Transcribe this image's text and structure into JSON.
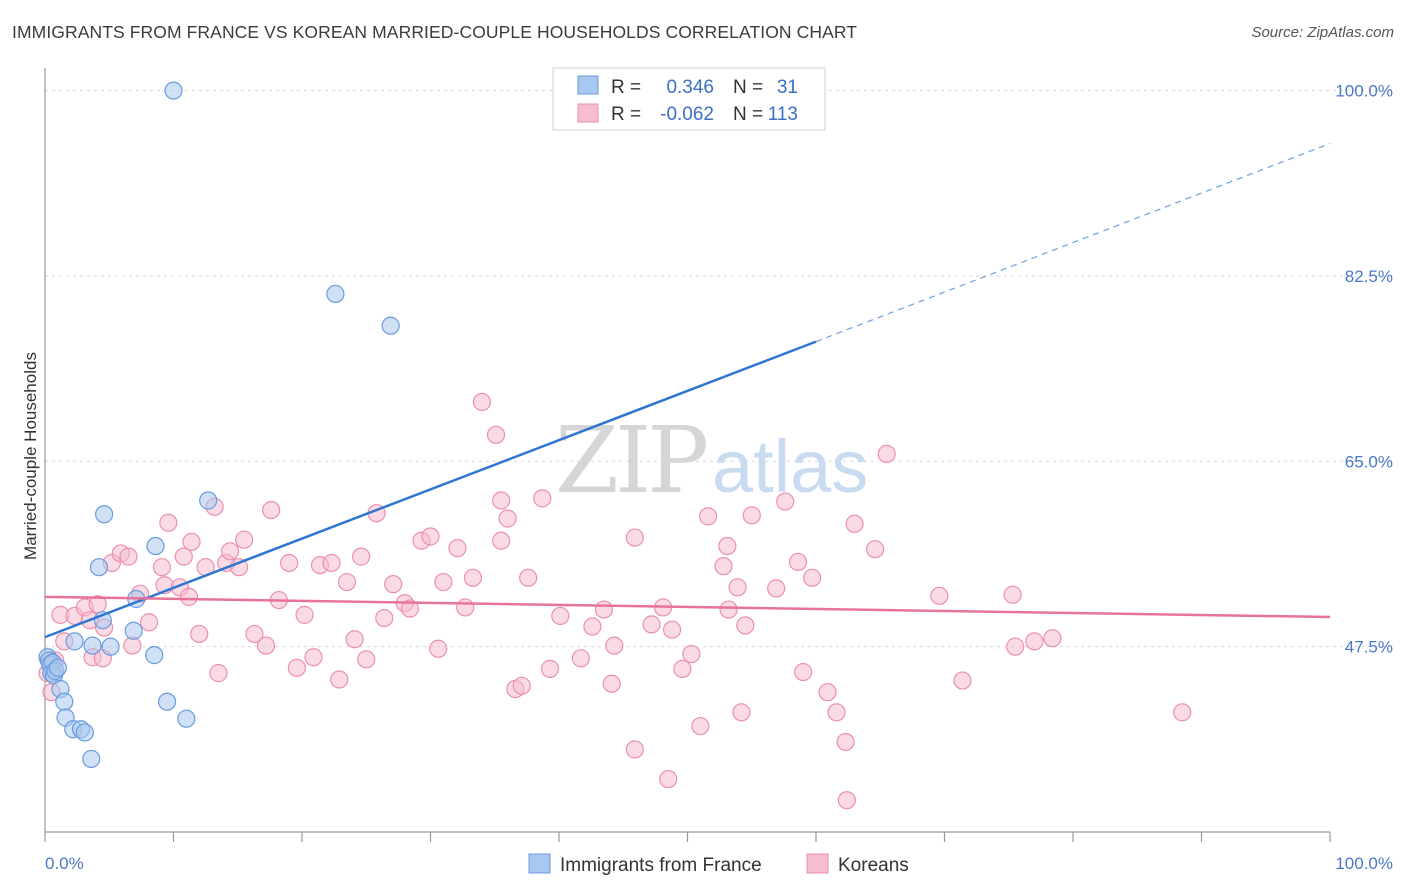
{
  "header": {
    "title": "IMMIGRANTS FROM FRANCE VS KOREAN MARRIED-COUPLE HOUSEHOLDS CORRELATION CHART",
    "source": "Source: ZipAtlas.com"
  },
  "watermark": {
    "zip": "ZIP",
    "atlas": "atlas"
  },
  "legend": {
    "rows": [
      {
        "r_label": "R =",
        "r_value": "0.346",
        "n_label": "N =",
        "n_value": "31"
      },
      {
        "r_label": "R =",
        "r_value": "-0.062",
        "n_label": "N =",
        "n_value": "113"
      }
    ]
  },
  "bottom_legend": {
    "items": [
      "Immigrants from France",
      "Koreans"
    ]
  },
  "colors": {
    "blue_fill": "#a9c8ef",
    "blue_stroke": "#6a9be0",
    "blue_line": "#2f76d2",
    "pink_fill": "#f6bdd0",
    "pink_stroke": "#ec8fae",
    "pink_line": "#e8739a",
    "tick_text": "#4a78c8",
    "grid": "#d9d9d9"
  },
  "chart_data": {
    "type": "scatter",
    "title": "IMMIGRANTS FROM FRANCE VS KOREAN MARRIED-COUPLE HOUSEHOLDS CORRELATION CHART",
    "xlabel": "",
    "ylabel": "Married-couple Households",
    "xlim": [
      0,
      100
    ],
    "ylim": [
      30,
      101
    ],
    "x_tick_labels": [
      "0.0%",
      "100.0%"
    ],
    "y_ticks": [
      47.5,
      65.0,
      82.5,
      100.0
    ],
    "y_tick_labels": [
      "47.5%",
      "65.0%",
      "82.5%",
      "100.0%"
    ],
    "grid": true,
    "legend_position": "top-center",
    "series": [
      {
        "name": "Immigrants from France",
        "color": "#a9c8ef",
        "x": [
          0.2,
          0.3,
          0.4,
          0.5,
          0.6,
          0.7,
          0.8,
          1.0,
          1.2,
          1.5,
          1.6,
          2.2,
          2.3,
          2.8,
          3.1,
          3.6,
          3.7,
          4.2,
          4.5,
          4.6,
          5.1,
          6.9,
          7.1,
          8.5,
          8.6,
          9.5,
          10.0,
          11.0,
          12.7,
          22.6,
          26.9
        ],
        "y": [
          46.5,
          46.2,
          45.8,
          45.0,
          46.0,
          44.8,
          45.2,
          45.5,
          43.5,
          42.3,
          40.8,
          39.7,
          48.0,
          39.7,
          39.4,
          36.9,
          47.6,
          55.0,
          50.0,
          60.0,
          47.5,
          49.0,
          52.0,
          46.7,
          57.0,
          42.3,
          100.0,
          40.7,
          61.3,
          80.8,
          77.8
        ],
        "trend": {
          "x0": 0,
          "y0": 48.4,
          "x1": 60,
          "y1": 76.3,
          "dash_to_x": 100,
          "dash_to_y": 95.0
        }
      },
      {
        "name": "Koreans",
        "color": "#f6bdd0",
        "x": [
          0.2,
          0.4,
          0.5,
          0.8,
          1.2,
          1.5,
          2.3,
          3.1,
          3.5,
          3.7,
          4.1,
          4.5,
          4.6,
          5.2,
          5.9,
          6.5,
          6.8,
          7.4,
          8.1,
          9.1,
          9.3,
          9.6,
          10.5,
          10.8,
          11.2,
          11.4,
          12.0,
          12.5,
          13.2,
          13.5,
          14.1,
          14.4,
          15.1,
          15.5,
          16.3,
          17.2,
          17.6,
          18.2,
          19.0,
          19.6,
          20.2,
          20.9,
          21.4,
          22.3,
          22.9,
          23.5,
          24.1,
          24.6,
          25.0,
          25.8,
          26.4,
          27.1,
          28.0,
          28.4,
          29.3,
          30.0,
          30.6,
          31.0,
          32.1,
          32.7,
          33.3,
          34.0,
          35.1,
          35.5,
          36.6,
          37.1,
          37.6,
          38.7,
          39.3,
          40.1,
          41.7,
          42.6,
          43.5,
          44.1,
          45.9,
          47.2,
          48.1,
          48.8,
          49.6,
          50.3,
          51.0,
          51.6,
          52.8,
          53.1,
          53.9,
          55.0,
          56.9,
          57.6,
          58.6,
          59.0,
          59.7,
          60.9,
          61.6,
          62.3,
          62.4,
          63.0,
          64.6,
          69.6,
          71.4,
          75.3,
          75.5,
          77.0,
          78.4,
          88.5,
          53.2,
          44.3,
          54.2,
          45.9,
          48.5,
          36.0,
          35.5,
          54.5,
          65.5
        ],
        "y": [
          45.0,
          46.2,
          43.2,
          46.2,
          50.5,
          48.0,
          50.4,
          51.2,
          50.0,
          46.5,
          51.5,
          46.4,
          49.3,
          55.4,
          56.3,
          56.0,
          47.6,
          52.5,
          49.8,
          55.0,
          53.3,
          59.2,
          53.1,
          56.0,
          52.2,
          57.4,
          48.7,
          55.0,
          60.7,
          45.0,
          55.4,
          56.5,
          55.0,
          57.6,
          48.7,
          47.6,
          60.4,
          51.9,
          55.4,
          45.5,
          50.5,
          46.5,
          55.2,
          55.4,
          44.4,
          53.6,
          48.2,
          56.0,
          46.3,
          60.1,
          50.2,
          53.4,
          51.6,
          51.1,
          57.5,
          57.9,
          47.3,
          53.6,
          56.8,
          51.2,
          54.0,
          70.6,
          67.5,
          57.5,
          43.5,
          43.8,
          54.0,
          61.5,
          45.4,
          50.4,
          46.4,
          49.4,
          51.0,
          44.0,
          57.8,
          49.6,
          51.2,
          49.1,
          45.4,
          46.8,
          40.0,
          59.8,
          55.1,
          57.0,
          53.1,
          59.9,
          53.0,
          61.2,
          55.5,
          45.1,
          54.0,
          43.2,
          41.3,
          38.5,
          33.0,
          59.1,
          56.7,
          52.3,
          44.3,
          52.4,
          47.5,
          48.0,
          48.3,
          41.3,
          51.0,
          47.6,
          41.3,
          37.8,
          35.0,
          59.6,
          61.3,
          49.5,
          65.7
        ],
        "trend": {
          "x0": 0,
          "y0": 52.2,
          "x1": 100,
          "y1": 50.3
        }
      }
    ]
  }
}
